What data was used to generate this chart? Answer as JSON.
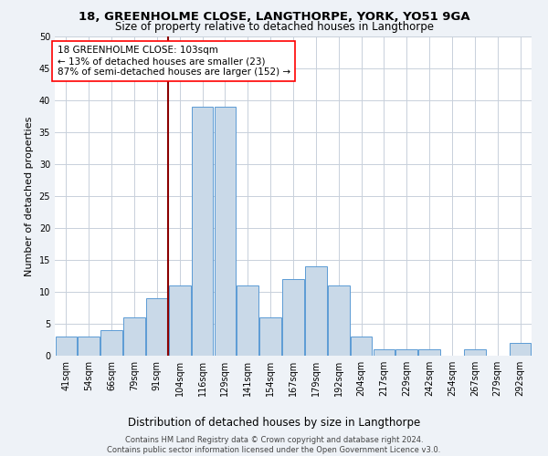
{
  "title": "18, GREENHOLME CLOSE, LANGTHORPE, YORK, YO51 9GA",
  "subtitle": "Size of property relative to detached houses in Langthorpe",
  "xlabel": "Distribution of detached houses by size in Langthorpe",
  "ylabel": "Number of detached properties",
  "bar_labels": [
    "41sqm",
    "54sqm",
    "66sqm",
    "79sqm",
    "91sqm",
    "104sqm",
    "116sqm",
    "129sqm",
    "141sqm",
    "154sqm",
    "167sqm",
    "179sqm",
    "192sqm",
    "204sqm",
    "217sqm",
    "229sqm",
    "242sqm",
    "254sqm",
    "267sqm",
    "279sqm",
    "292sqm"
  ],
  "bar_values": [
    3,
    3,
    4,
    6,
    9,
    11,
    39,
    39,
    11,
    6,
    12,
    14,
    11,
    3,
    1,
    1,
    1,
    0,
    1,
    0,
    2
  ],
  "bar_color": "#c9d9e8",
  "bar_edge_color": "#5b9bd5",
  "vline_x_index": 5,
  "vline_color": "#8b0000",
  "annotation_text": "18 GREENHOLME CLOSE: 103sqm\n← 13% of detached houses are smaller (23)\n87% of semi-detached houses are larger (152) →",
  "annotation_box_color": "white",
  "annotation_box_edge_color": "red",
  "ylim": [
    0,
    50
  ],
  "yticks": [
    0,
    5,
    10,
    15,
    20,
    25,
    30,
    35,
    40,
    45,
    50
  ],
  "footnote": "Contains HM Land Registry data © Crown copyright and database right 2024.\nContains public sector information licensed under the Open Government Licence v3.0.",
  "bg_color": "#eef2f7",
  "plot_bg_color": "#ffffff",
  "grid_color": "#c8d0db",
  "title_fontsize": 9.5,
  "subtitle_fontsize": 8.5,
  "ylabel_fontsize": 8,
  "xlabel_fontsize": 8.5,
  "tick_fontsize": 7,
  "annot_fontsize": 7.5,
  "footnote_fontsize": 6
}
